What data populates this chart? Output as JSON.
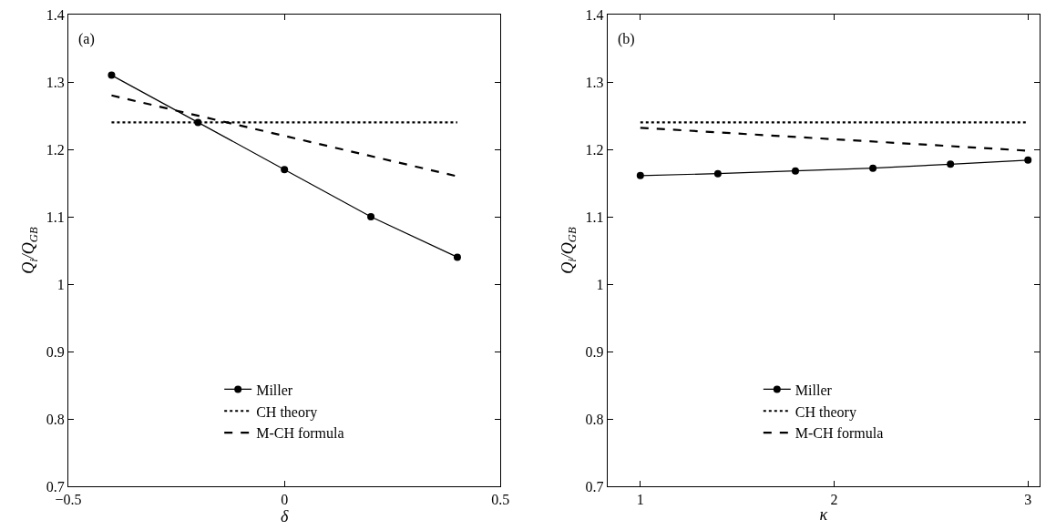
{
  "chart_data": [
    {
      "type": "line",
      "xlabel": "δ",
      "ylabel": "Q$_{i}$/Q$_{GB}$",
      "annotations": [
        "(a)"
      ],
      "xlim": [
        -0.5,
        0.5
      ],
      "xticks": [
        {
          "value": -0.5,
          "label": "−0.5"
        },
        0,
        0.5
      ],
      "ylim": [
        0.7,
        1.4
      ],
      "yticks": [
        0.7,
        0.8,
        0.9,
        {
          "value": 1.0,
          "label": "1"
        },
        1.1,
        1.2,
        1.3,
        1.4
      ],
      "legend": "bottom",
      "series": [
        {
          "name": "Miller",
          "color": "#000000",
          "x": [
            -0.4,
            -0.2,
            0,
            0.2,
            0.4
          ],
          "values": [
            1.31,
            1.24,
            1.17,
            1.1,
            1.04
          ],
          "marker": "circle",
          "line_style": "solid"
        },
        {
          "name": "CH theory",
          "color": "#000000",
          "x": [
            -0.4,
            0.4
          ],
          "values": [
            1.24,
            1.24
          ],
          "marker": "none",
          "line_style": "dotted"
        },
        {
          "name": "M-CH formula",
          "color": "#000000",
          "x": [
            -0.4,
            0.4
          ],
          "values": [
            1.28,
            1.16
          ],
          "marker": "none",
          "line_style": "dashed"
        }
      ]
    },
    {
      "type": "line",
      "xlabel": "κ",
      "ylabel": "Q$_{i}$/Q$_{GB}$",
      "annotations": [
        "(b)"
      ],
      "xlim": [
        0.83,
        3.06
      ],
      "xticks": [
        1,
        2,
        3
      ],
      "ylim": [
        0.7,
        1.4
      ],
      "yticks": [
        0.7,
        0.8,
        0.9,
        {
          "value": 1.0,
          "label": "1"
        },
        1.1,
        1.2,
        1.3,
        1.4
      ],
      "legend": "bottom",
      "series": [
        {
          "name": "Miller",
          "color": "#000000",
          "x": [
            1,
            1.4,
            1.8,
            2.2,
            2.6,
            3
          ],
          "values": [
            1.161,
            1.164,
            1.168,
            1.172,
            1.178,
            1.184
          ],
          "marker": "circle",
          "line_style": "solid"
        },
        {
          "name": "CH theory",
          "color": "#000000",
          "x": [
            1,
            3
          ],
          "values": [
            1.24,
            1.24
          ],
          "marker": "none",
          "line_style": "dotted"
        },
        {
          "name": "M-CH formula",
          "color": "#000000",
          "x": [
            1,
            3
          ],
          "values": [
            1.232,
            1.198
          ],
          "marker": "none",
          "line_style": "dashed"
        }
      ]
    }
  ]
}
